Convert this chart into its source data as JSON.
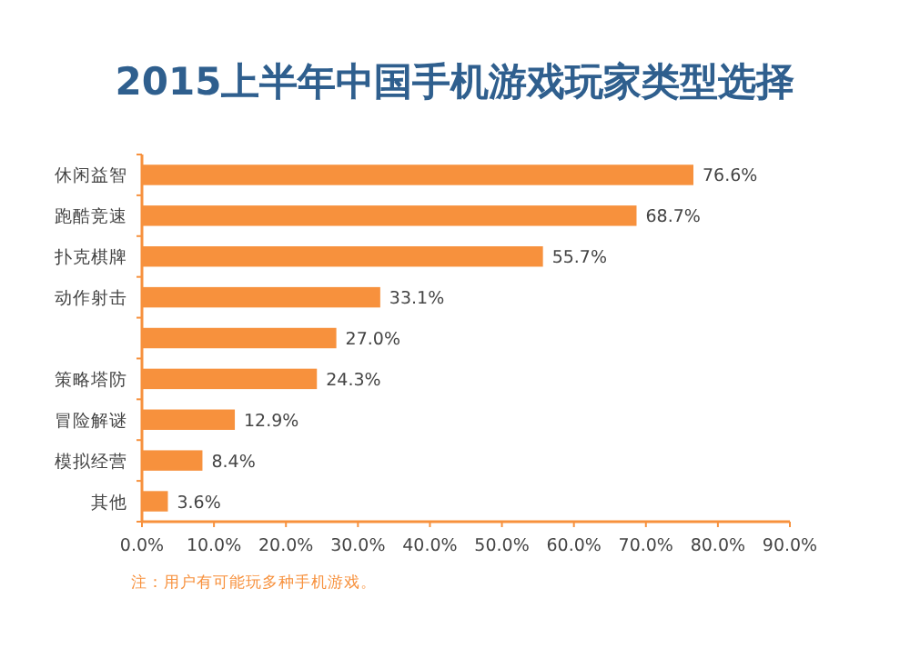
{
  "chart_data": {
    "type": "bar",
    "orientation": "horizontal",
    "title": "2015上半年中国手机游戏玩家类型选择",
    "categories": [
      "休闲益智",
      "跑酷竞速",
      "扑克棋牌",
      "动作射击",
      null,
      "策略塔防",
      "冒险解谜",
      "模拟经营",
      "其他"
    ],
    "values": [
      76.6,
      68.7,
      55.7,
      33.1,
      27.0,
      24.3,
      12.9,
      8.4,
      3.6
    ],
    "value_labels": [
      "76.6%",
      "68.7%",
      "55.7%",
      "33.1%",
      "27.0%",
      "24.3%",
      "12.9%",
      "8.4%",
      "3.6%"
    ],
    "color": "#f7913d",
    "xlim": [
      0,
      90
    ],
    "xticks": [
      {
        "value": 0,
        "label": "0.0%"
      },
      {
        "value": 10,
        "label": "10.0%"
      },
      {
        "value": 20,
        "label": "20.0%"
      },
      {
        "value": 30,
        "label": "30.0%"
      },
      {
        "value": 40,
        "label": "40.0%"
      },
      {
        "value": 50,
        "label": "50.0%"
      },
      {
        "value": 60,
        "label": "60.0%"
      },
      {
        "value": 70,
        "label": "70.0%"
      },
      {
        "value": 80,
        "label": "80.0%"
      },
      {
        "value": 90,
        "label": "90.0%"
      }
    ],
    "grid": false,
    "annotations": [
      "注：用户有可能玩多种手机游戏。"
    ]
  }
}
